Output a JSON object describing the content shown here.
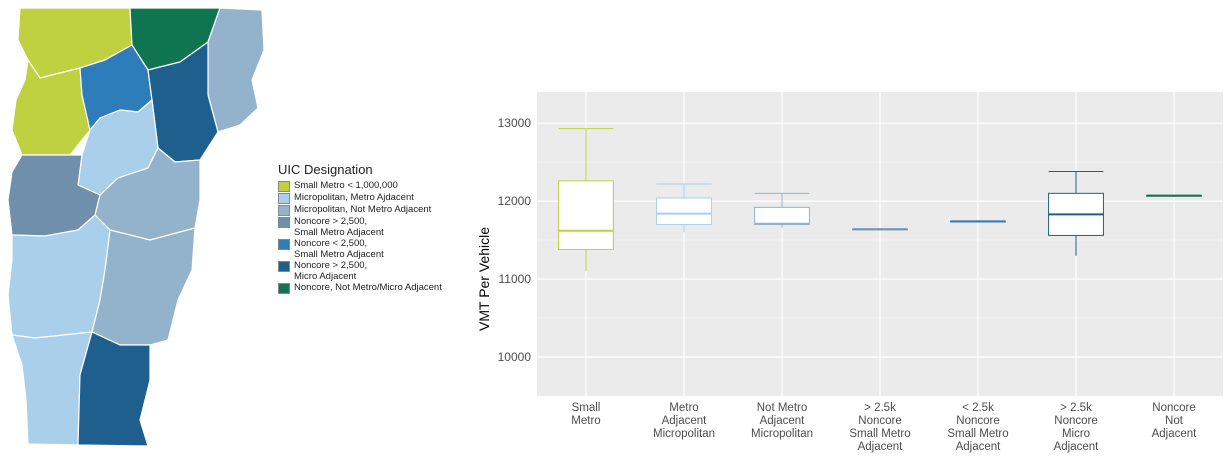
{
  "legend": {
    "title": "UIC Designation",
    "items": [
      {
        "label": "Small Metro < 1,000,000",
        "color": "#bfd141"
      },
      {
        "label": "Micropolitan, Metro Ajdacent",
        "color": "#a9cfea"
      },
      {
        "label": "Micropolitan, Not Metro Adjacent",
        "color": "#93b3cc"
      },
      {
        "label": "Noncore > 2,500,\nSmall Metro Adjacent",
        "color": "#6f8fab"
      },
      {
        "label": "Noncore < 2,500,\nSmall Metro Adjacent",
        "color": "#2d7dba"
      },
      {
        "label": "Noncore > 2,500,\nMicro Adjacent",
        "color": "#1e5f8e"
      },
      {
        "label": "Noncore, Not Metro/Micro Adjacent",
        "color": "#0e7550"
      }
    ]
  },
  "chart_data": {
    "type": "box",
    "ylabel": "VMT Per Vehicle",
    "xlabel": "",
    "ylim": [
      9500,
      13400
    ],
    "yticks": [
      10000,
      11000,
      12000,
      13000
    ],
    "grid": true,
    "legend": "none",
    "categories": [
      {
        "label": "Small\nMetro",
        "color": "#bfd141",
        "min": 11100,
        "q1": 11380,
        "median": 11620,
        "q3": 12260,
        "max": 12930
      },
      {
        "label": "Metro\nAdjacent\nMicropolitan",
        "color": "#a9cfea",
        "min": 11600,
        "q1": 11700,
        "median": 11840,
        "q3": 12040,
        "max": 12220
      },
      {
        "label": "Not Metro\nAdjacent\nMicropolitan",
        "color": "#93b3cc",
        "min": 11660,
        "q1": 11700,
        "median": 11710,
        "q3": 11920,
        "max": 12100
      },
      {
        "label": "> 2.5k\nNoncore\nSmall Metro\nAdjacent",
        "color": "#6f8fab",
        "min": 11640,
        "q1": 11640,
        "median": 11640,
        "q3": 11640,
        "max": 11640
      },
      {
        "label": "< 2.5k\nNoncore\nSmall Metro\nAdjacent",
        "color": "#2d7dba",
        "min": 11740,
        "q1": 11740,
        "median": 11740,
        "q3": 11740,
        "max": 11740
      },
      {
        "label": "> 2.5k\nNoncore\nMicro\nAdjacent",
        "color": "#1e5f8e",
        "min": 11300,
        "q1": 11560,
        "median": 11830,
        "q3": 12100,
        "max": 12380
      },
      {
        "label": "Noncore\nNot\nAdjacent",
        "color": "#0e7550",
        "min": 12070,
        "q1": 12070,
        "median": 12070,
        "q3": 12070,
        "max": 12070
      }
    ]
  }
}
